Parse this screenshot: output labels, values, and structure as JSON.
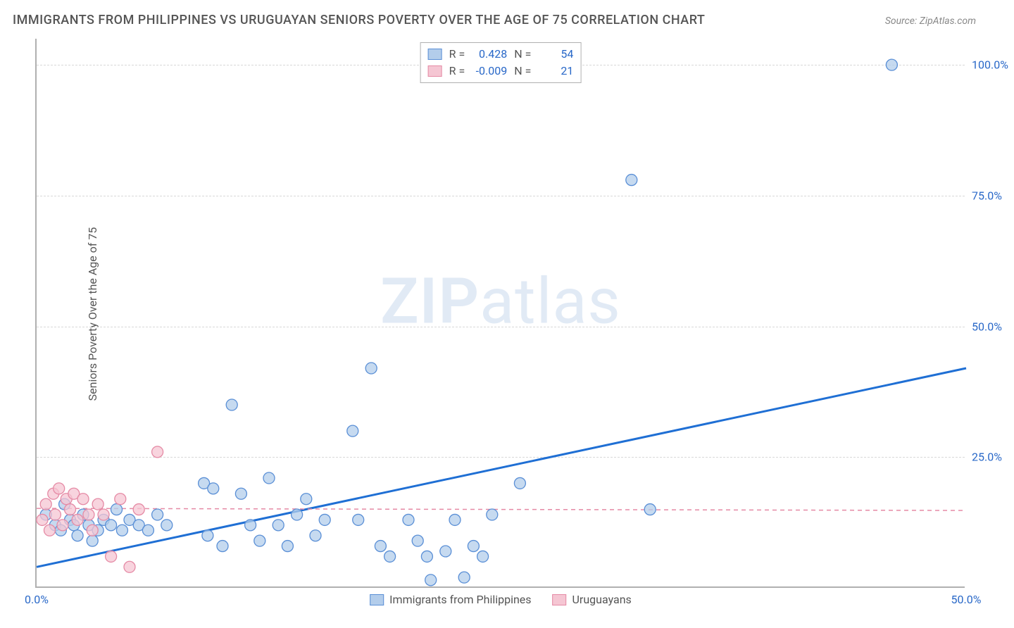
{
  "title": "IMMIGRANTS FROM PHILIPPINES VS URUGUAYAN SENIORS POVERTY OVER THE AGE OF 75 CORRELATION CHART",
  "source": "Source: ZipAtlas.com",
  "y_axis_label": "Seniors Poverty Over the Age of 75",
  "watermark_bold": "ZIP",
  "watermark_rest": "atlas",
  "plot": {
    "xlim": [
      0,
      50
    ],
    "ylim": [
      0,
      105
    ],
    "x_ticks": [
      {
        "v": 0,
        "label": "0.0%"
      },
      {
        "v": 50,
        "label": "50.0%"
      }
    ],
    "y_ticks": [
      {
        "v": 25,
        "label": "25.0%"
      },
      {
        "v": 50,
        "label": "50.0%"
      },
      {
        "v": 75,
        "label": "75.0%"
      },
      {
        "v": 100,
        "label": "100.0%"
      }
    ],
    "grid_color": "#d8d8d8",
    "background": "#ffffff",
    "marker_radius": 8,
    "marker_stroke_width": 1.3,
    "trend_line_width": 3,
    "trend_dash_width": 1.5
  },
  "series": [
    {
      "name": "Immigrants from Philippines",
      "fill": "#b3cdeb",
      "stroke": "#5a8fd6",
      "trend_color": "#1f6fd4",
      "trend_style": "solid",
      "trend": {
        "x1": 0,
        "y1": 4,
        "x2": 50,
        "y2": 42
      },
      "R": "0.428",
      "N": "54",
      "points": [
        [
          0.5,
          14
        ],
        [
          1,
          12
        ],
        [
          1.3,
          11
        ],
        [
          1.5,
          16
        ],
        [
          1.8,
          13
        ],
        [
          2,
          12
        ],
        [
          2.2,
          10
        ],
        [
          2.5,
          14
        ],
        [
          2.8,
          12
        ],
        [
          3,
          9
        ],
        [
          3.3,
          11
        ],
        [
          3.6,
          13
        ],
        [
          4,
          12
        ],
        [
          4.3,
          15
        ],
        [
          4.6,
          11
        ],
        [
          5,
          13
        ],
        [
          5.5,
          12
        ],
        [
          6,
          11
        ],
        [
          6.5,
          14
        ],
        [
          7,
          12
        ],
        [
          9,
          20
        ],
        [
          9.2,
          10
        ],
        [
          9.5,
          19
        ],
        [
          10,
          8
        ],
        [
          10.5,
          35
        ],
        [
          11,
          18
        ],
        [
          11.5,
          12
        ],
        [
          12,
          9
        ],
        [
          12.5,
          21
        ],
        [
          13,
          12
        ],
        [
          13.5,
          8
        ],
        [
          14,
          14
        ],
        [
          14.5,
          17
        ],
        [
          15,
          10
        ],
        [
          15.5,
          13
        ],
        [
          17,
          30
        ],
        [
          17.3,
          13
        ],
        [
          18,
          42
        ],
        [
          18.5,
          8
        ],
        [
          19,
          6
        ],
        [
          20,
          13
        ],
        [
          20.5,
          9
        ],
        [
          21,
          6
        ],
        [
          21.2,
          1.5
        ],
        [
          22,
          7
        ],
        [
          22.5,
          13
        ],
        [
          23,
          2
        ],
        [
          23.5,
          8
        ],
        [
          24,
          6
        ],
        [
          24.5,
          14
        ],
        [
          26,
          20
        ],
        [
          32,
          78
        ],
        [
          33,
          15
        ],
        [
          46,
          100
        ]
      ]
    },
    {
      "name": "Uruguayans",
      "fill": "#f5c6d3",
      "stroke": "#e58aa5",
      "trend_color": "#e58aa5",
      "trend_style": "dashed",
      "trend": {
        "x1": 0,
        "y1": 15.2,
        "x2": 50,
        "y2": 14.8
      },
      "R": "-0.009",
      "N": "21",
      "points": [
        [
          0.3,
          13
        ],
        [
          0.5,
          16
        ],
        [
          0.7,
          11
        ],
        [
          0.9,
          18
        ],
        [
          1,
          14
        ],
        [
          1.2,
          19
        ],
        [
          1.4,
          12
        ],
        [
          1.6,
          17
        ],
        [
          1.8,
          15
        ],
        [
          2,
          18
        ],
        [
          2.2,
          13
        ],
        [
          2.5,
          17
        ],
        [
          2.8,
          14
        ],
        [
          3,
          11
        ],
        [
          3.3,
          16
        ],
        [
          3.6,
          14
        ],
        [
          4,
          6
        ],
        [
          4.5,
          17
        ],
        [
          5,
          4
        ],
        [
          5.5,
          15
        ],
        [
          6.5,
          26
        ]
      ]
    }
  ],
  "stats_legend_labels": {
    "R": "R =",
    "N": "N ="
  },
  "bottom_legend": [
    {
      "label": "Immigrants from Philippines",
      "fill": "#b3cdeb",
      "stroke": "#5a8fd6"
    },
    {
      "label": "Uruguayans",
      "fill": "#f5c6d3",
      "stroke": "#e58aa5"
    }
  ]
}
